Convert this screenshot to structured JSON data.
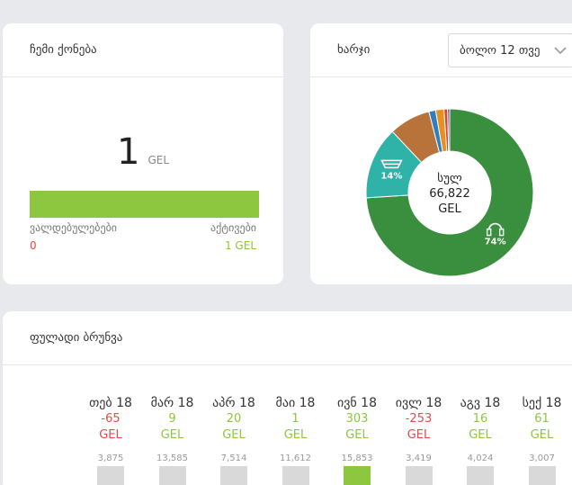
{
  "assets": {
    "title": "ჩემი ქონება",
    "amount": "1",
    "currency": "GEL",
    "liabilities_label": "ვალდებულებები",
    "assets_label": "აქტივები",
    "liabilities_value": "0",
    "assets_value": "1 GEL"
  },
  "expenses": {
    "title": "ხარჯი",
    "period": "ბოლო 12 თვე",
    "center_label": "სულ",
    "center_amount": "66,822",
    "center_currency": "GEL",
    "slices": [
      {
        "percent": 74,
        "label": "74%",
        "icon": "headphones-icon",
        "color": "#3a8f3e"
      },
      {
        "percent": 14,
        "label": "14%",
        "icon": "shopping-cart-icon",
        "color": "#2fb3a8"
      },
      {
        "percent": 8,
        "label": "",
        "icon": "",
        "color": "#b8733a"
      },
      {
        "percent": 1.3,
        "label": "",
        "icon": "",
        "color": "#2f7fbf"
      },
      {
        "percent": 1.6,
        "label": "",
        "icon": "",
        "color": "#e8901f"
      },
      {
        "percent": 0.7,
        "label": "",
        "icon": "",
        "color": "#d9482b"
      },
      {
        "percent": 0.4,
        "label": "",
        "icon": "",
        "color": "#6a4a9c"
      }
    ]
  },
  "cashflow": {
    "title": "ფულადი ბრუნვა",
    "months": [
      {
        "name": "თებ 18",
        "value": "-65",
        "currency": "GEL",
        "total": "3,875",
        "sign": "neg",
        "fill": 0
      },
      {
        "name": "მარ 18",
        "value": "9",
        "currency": "GEL",
        "total": "13,585",
        "sign": "pos",
        "fill": 0.1
      },
      {
        "name": "აპრ 18",
        "value": "20",
        "currency": "GEL",
        "total": "7,514",
        "sign": "pos",
        "fill": 0
      },
      {
        "name": "მაი 18",
        "value": "1",
        "currency": "GEL",
        "total": "11,612",
        "sign": "pos",
        "fill": 0
      },
      {
        "name": "ივნ 18",
        "value": "303",
        "currency": "GEL",
        "total": "15,853",
        "sign": "pos",
        "fill": 1
      },
      {
        "name": "ივლ 18",
        "value": "-253",
        "currency": "GEL",
        "total": "3,419",
        "sign": "neg",
        "fill": 0
      },
      {
        "name": "აგვ 18",
        "value": "16",
        "currency": "GEL",
        "total": "4,024",
        "sign": "pos",
        "fill": 0
      },
      {
        "name": "სექ 18",
        "value": "61",
        "currency": "GEL",
        "total": "3,007",
        "sign": "pos",
        "fill": 0
      }
    ]
  }
}
